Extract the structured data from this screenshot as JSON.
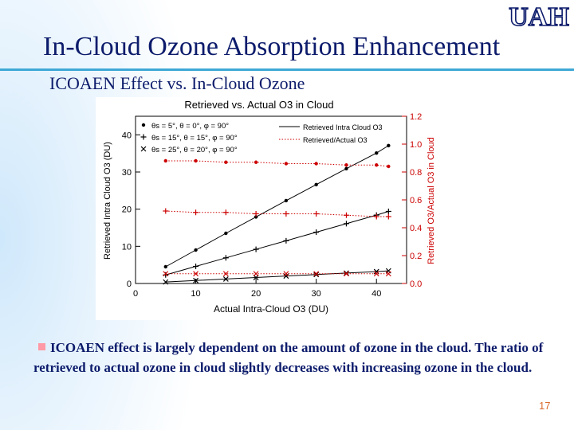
{
  "slide": {
    "logo_text": "UAH",
    "title": "In-Cloud Ozone Absorption Enhancement",
    "subtitle": "ICOAEN Effect vs. In-Cloud Ozone",
    "bullet_text": "ICOAEN effect is largely dependent on the amount of ozone in the cloud. The ratio of retrieved to actual ozone in cloud slightly decreases with increasing ozone in the cloud.",
    "page_number": "17",
    "colors": {
      "title": "#0c1b6b",
      "rule": "#3ea8d6",
      "bullet": "#ff9aa6",
      "page_number": "#d96c2c",
      "retrieved": "#000000",
      "ratio": "#cc0000"
    },
    "icons": {
      "bullet": "square-bullet-icon"
    }
  },
  "chart_data": {
    "type": "line",
    "title": "Retrieved vs. Actual O3 in Cloud",
    "xlabel": "Actual Intra-Cloud O3 (DU)",
    "ylabel": "Retrieved Intra Cloud O3 (DU)",
    "y2label": "Retrieved O3/Actual O3 in Cloud",
    "xlim": [
      0,
      45
    ],
    "ylim": [
      0,
      45
    ],
    "y2lim": [
      0,
      1.2
    ],
    "xticks": [
      "0",
      "10",
      "20",
      "30",
      "40"
    ],
    "yticks": [
      "0",
      "10",
      "20",
      "30",
      "40"
    ],
    "y2ticks": [
      "0.0",
      "0.2",
      "0.4",
      "0.6",
      "0.8",
      "1.0",
      "1.2"
    ],
    "grid": false,
    "legend_position": "top",
    "legend_conditions": [
      {
        "marker": "•",
        "text": "θs = 5°, θ = 0°, φ = 90°"
      },
      {
        "marker": "+",
        "text": "θs = 15°, θ = 15°, φ = 90°"
      },
      {
        "marker": "×",
        "text": "θs = 25°, θ = 20°, φ = 90°"
      }
    ],
    "legend_lines": [
      {
        "style": "solid",
        "text": "Retrieved Intra Cloud O3"
      },
      {
        "style": "dotted",
        "text": "Retrieved/Actual O3"
      }
    ],
    "x": [
      5,
      10,
      15,
      20,
      25,
      30,
      35,
      40,
      42
    ],
    "series": [
      {
        "marker": "dot",
        "axis": "left",
        "values": [
          4.5,
          9,
          13.5,
          17.9,
          22.3,
          26.6,
          30.9,
          35.1,
          37.1
        ]
      },
      {
        "marker": "plus",
        "axis": "left",
        "values": [
          2.3,
          4.6,
          6.9,
          9.2,
          11.5,
          13.8,
          16.1,
          18.4,
          19.4
        ]
      },
      {
        "marker": "cross",
        "axis": "left",
        "values": [
          0.4,
          0.8,
          1.2,
          1.6,
          2.0,
          2.4,
          2.8,
          3.2,
          3.4
        ]
      },
      {
        "marker": "dot",
        "axis": "right",
        "values": [
          0.88,
          0.88,
          0.87,
          0.87,
          0.86,
          0.86,
          0.85,
          0.85,
          0.84
        ]
      },
      {
        "marker": "plus",
        "axis": "right",
        "values": [
          0.52,
          0.51,
          0.51,
          0.5,
          0.5,
          0.5,
          0.49,
          0.48,
          0.48
        ]
      },
      {
        "marker": "cross",
        "axis": "right",
        "values": [
          0.07,
          0.07,
          0.07,
          0.07,
          0.07,
          0.07,
          0.07,
          0.07,
          0.07
        ]
      }
    ]
  }
}
